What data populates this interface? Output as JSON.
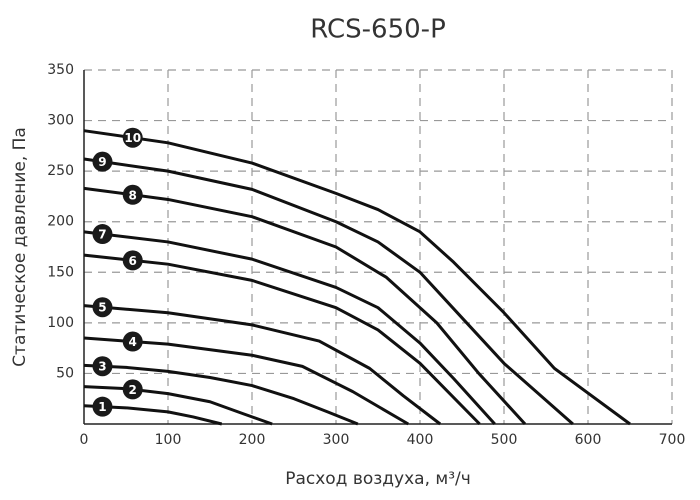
{
  "chart_data": {
    "type": "line",
    "title": "RCS-650-P",
    "x_label": "Расход воздуха, м³/ч",
    "y_label": "Статическое давление, Па",
    "xlim": [
      0,
      700
    ],
    "ylim": [
      0,
      350
    ],
    "xticks": [
      0,
      100,
      200,
      300,
      400,
      500,
      600,
      700
    ],
    "yticks": [
      50,
      100,
      150,
      200,
      250,
      300,
      350
    ],
    "grid": true,
    "series": [
      {
        "name": "1",
        "color": "#111111",
        "x": [
          0,
          50,
          100,
          130,
          164
        ],
        "values": [
          18,
          16,
          12,
          7,
          0
        ]
      },
      {
        "name": "2",
        "color": "#111111",
        "x": [
          0,
          50,
          100,
          150,
          190,
          224
        ],
        "values": [
          37,
          35,
          30,
          22,
          10,
          0
        ]
      },
      {
        "name": "3",
        "color": "#111111",
        "x": [
          0,
          50,
          100,
          150,
          200,
          250,
          290,
          326
        ],
        "values": [
          58,
          56,
          52,
          46,
          38,
          25,
          12,
          0
        ]
      },
      {
        "name": "4",
        "color": "#111111",
        "x": [
          0,
          100,
          200,
          260,
          320,
          386
        ],
        "values": [
          85,
          79,
          68,
          57,
          32,
          0
        ]
      },
      {
        "name": "5",
        "color": "#111111",
        "x": [
          0,
          100,
          200,
          280,
          340,
          380,
          424
        ],
        "values": [
          117,
          110,
          98,
          82,
          55,
          28,
          0
        ]
      },
      {
        "name": "6",
        "color": "#111111",
        "x": [
          0,
          100,
          200,
          300,
          350,
          400,
          471
        ],
        "values": [
          167,
          158,
          142,
          115,
          93,
          60,
          0
        ]
      },
      {
        "name": "7",
        "color": "#111111",
        "x": [
          0,
          100,
          200,
          300,
          350,
          400,
          440,
          489
        ],
        "values": [
          190,
          180,
          163,
          135,
          115,
          80,
          45,
          0
        ]
      },
      {
        "name": "8",
        "color": "#111111",
        "x": [
          0,
          100,
          200,
          300,
          360,
          420,
          470,
          525
        ],
        "values": [
          233,
          222,
          205,
          175,
          145,
          100,
          50,
          0
        ]
      },
      {
        "name": "9",
        "color": "#111111",
        "x": [
          0,
          100,
          200,
          300,
          350,
          400,
          450,
          500,
          582
        ],
        "values": [
          262,
          250,
          232,
          200,
          180,
          150,
          105,
          60,
          0
        ]
      },
      {
        "name": "10",
        "color": "#111111",
        "x": [
          0,
          100,
          200,
          300,
          350,
          400,
          440,
          500,
          560,
          650
        ],
        "values": [
          290,
          278,
          258,
          228,
          212,
          190,
          160,
          110,
          55,
          0
        ]
      }
    ]
  }
}
